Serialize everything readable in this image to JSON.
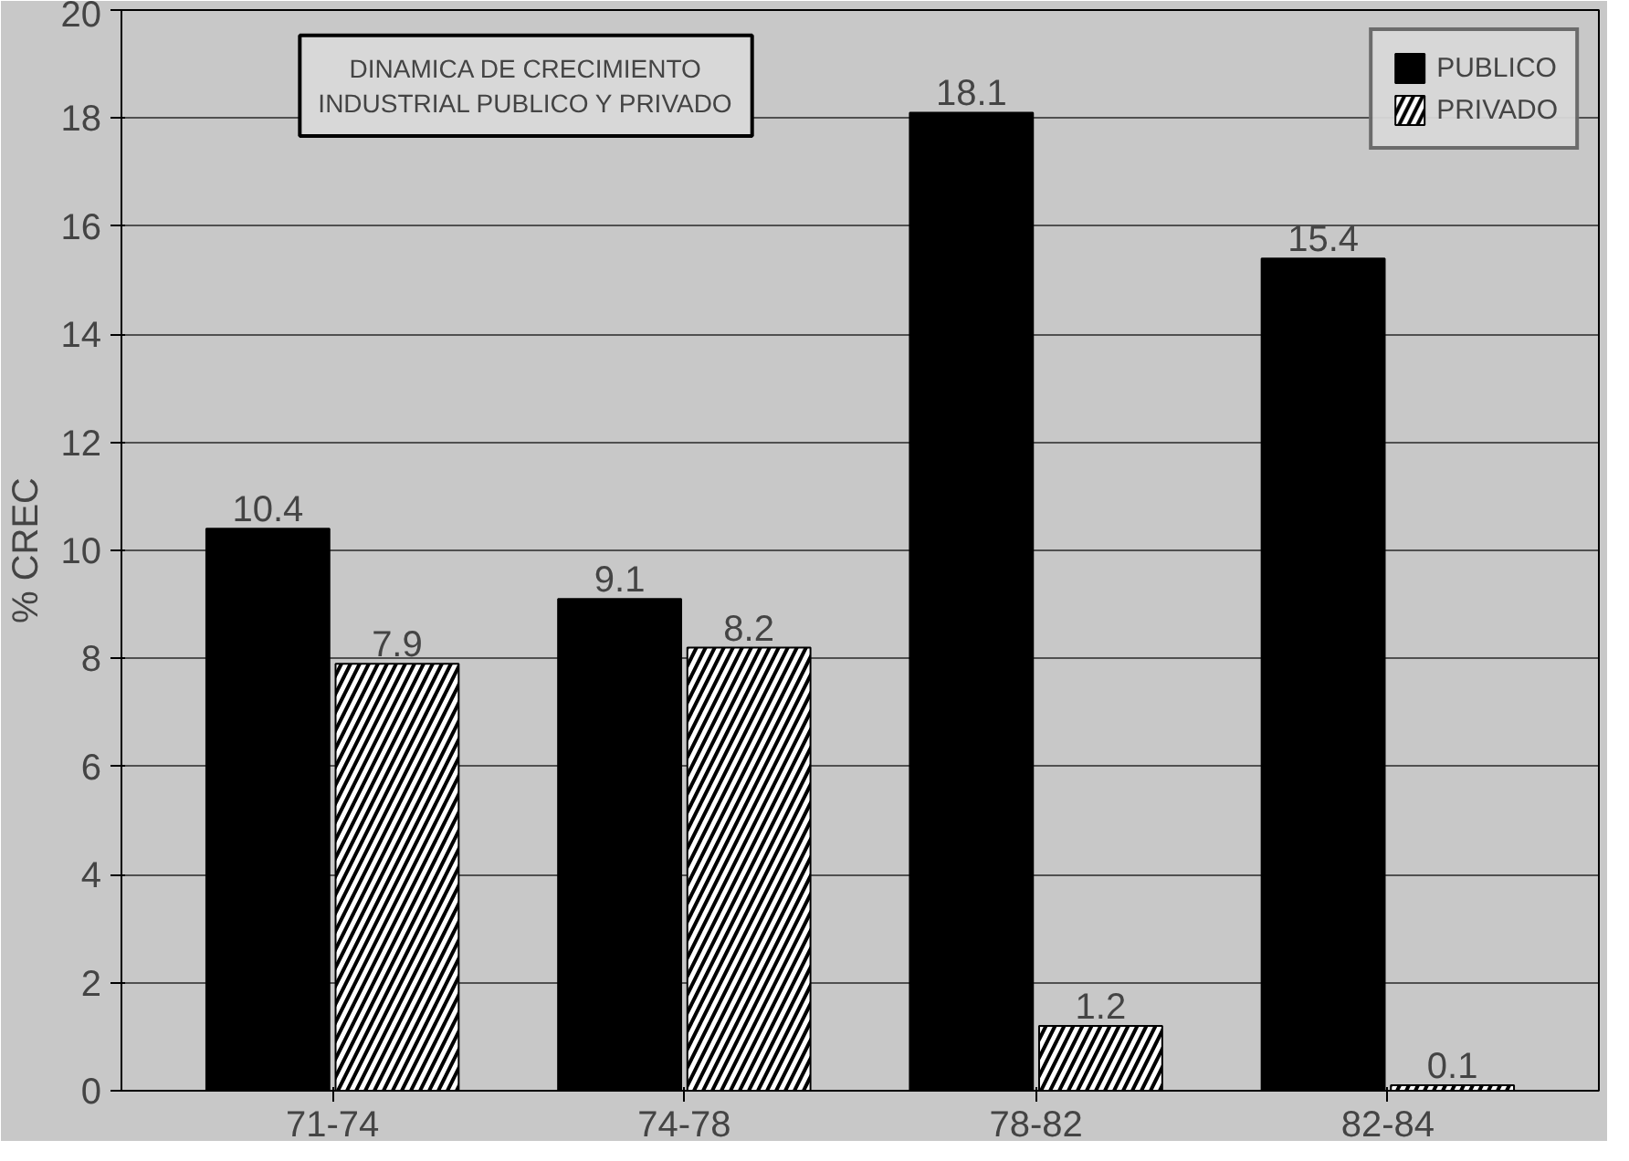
{
  "chart_data": {
    "type": "bar",
    "title": "DINAMICA DE CRECIMIENTO INDUSTRIAL PUBLICO Y PRIVADO",
    "ylabel": "% CREC",
    "categories": [
      "71-74",
      "74-78",
      "78-82",
      "82-84"
    ],
    "series": [
      {
        "name": "PUBLICO",
        "color": "#000000",
        "values": [
          10.4,
          9.1,
          18.1,
          15.4
        ]
      },
      {
        "name": "PRIVADO",
        "color": "#ffffff",
        "values": [
          7.9,
          8.2,
          1.2,
          0.1
        ]
      }
    ],
    "ylim": [
      0,
      20
    ],
    "yticks": [
      0,
      2,
      4,
      6,
      8,
      10,
      12,
      14,
      16,
      18,
      20
    ],
    "grid": "y",
    "legend": "top right",
    "data_labels": true
  }
}
